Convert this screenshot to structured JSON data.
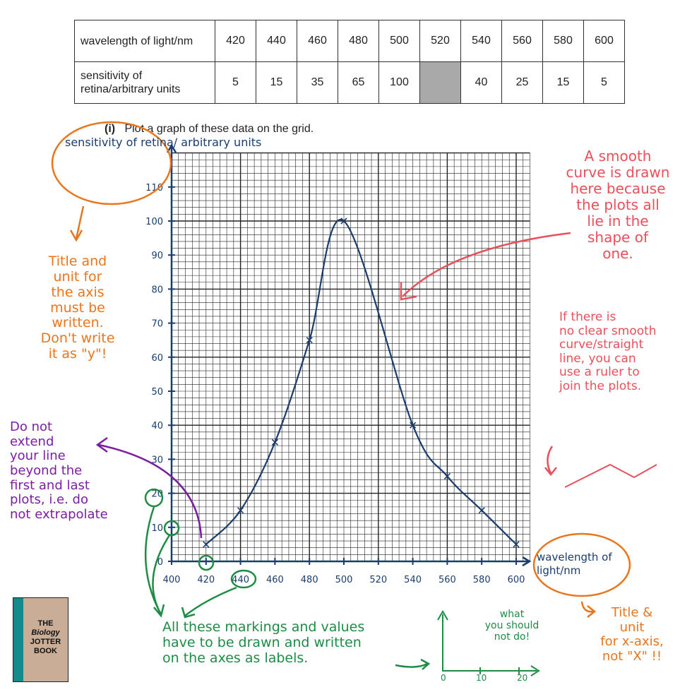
{
  "table": {
    "row1_header": "wavelength of light/nm",
    "row2_header": "sensitivity of retina/arbitrary units",
    "wavelengths": [
      "420",
      "440",
      "460",
      "480",
      "500",
      "520",
      "540",
      "560",
      "580",
      "600"
    ],
    "sensitivities": [
      "5",
      "15",
      "35",
      "65",
      "100",
      "",
      "40",
      "25",
      "15",
      "5"
    ]
  },
  "question": {
    "number": "(i)",
    "text": "Plot a graph of these data on the grid."
  },
  "chart_data": {
    "type": "line",
    "x": [
      420,
      440,
      460,
      480,
      500,
      540,
      560,
      580,
      600
    ],
    "y": [
      5,
      15,
      35,
      65,
      100,
      40,
      25,
      15,
      5
    ],
    "xlabel": "wavelength of light/nm",
    "ylabel": "sensitivity of retina/ arbitrary units",
    "xlim": [
      400,
      600
    ],
    "ylim": [
      0,
      110
    ],
    "xticks": [
      "400",
      "420",
      "440",
      "460",
      "480",
      "500",
      "520",
      "540",
      "560",
      "580",
      "600"
    ],
    "yticks": [
      "0",
      "10",
      "20",
      "30",
      "40",
      "50",
      "60",
      "70",
      "80",
      "90",
      "100",
      "110"
    ],
    "grid": true,
    "smooth": true,
    "markers": "x",
    "line_color": "#1a3d6e"
  },
  "annotations": {
    "y_axis_title_note": [
      "Title and",
      "unit for",
      "the axis",
      "must be",
      "written.",
      "Don't write",
      "it as \"y\"!"
    ],
    "smooth_curve_note": [
      "A smooth",
      "curve is drawn",
      "here because",
      "the plots all",
      "lie in the",
      "shape of",
      "one."
    ],
    "ruler_note": [
      "If there is",
      "no clear smooth",
      "curve/straight",
      "line, you can",
      "use a ruler to",
      "join the plots."
    ],
    "extrapolate_note": [
      "Do not",
      "extend",
      "your line",
      "beyond the",
      "first and last",
      "plots, i.e. do",
      "not extrapolate"
    ],
    "labels_note": [
      "All these markings and values",
      "have to be drawn and written",
      "on the axes as labels."
    ],
    "wrong_example_note": [
      "what",
      "you should",
      "not do!"
    ],
    "wrong_example_ticks": [
      "0",
      "10",
      "20"
    ],
    "x_axis_title_note": [
      "Title &",
      "unit",
      "for x-axis,",
      "not \"X\" !!"
    ]
  },
  "logo": {
    "text": "THE Biology JOTTER BOOK"
  },
  "colors": {
    "orange": "#e8761e",
    "red": "#e8505b",
    "purple": "#7b1fa2",
    "green": "#1e8c45",
    "blue": "#1a3d6e"
  }
}
